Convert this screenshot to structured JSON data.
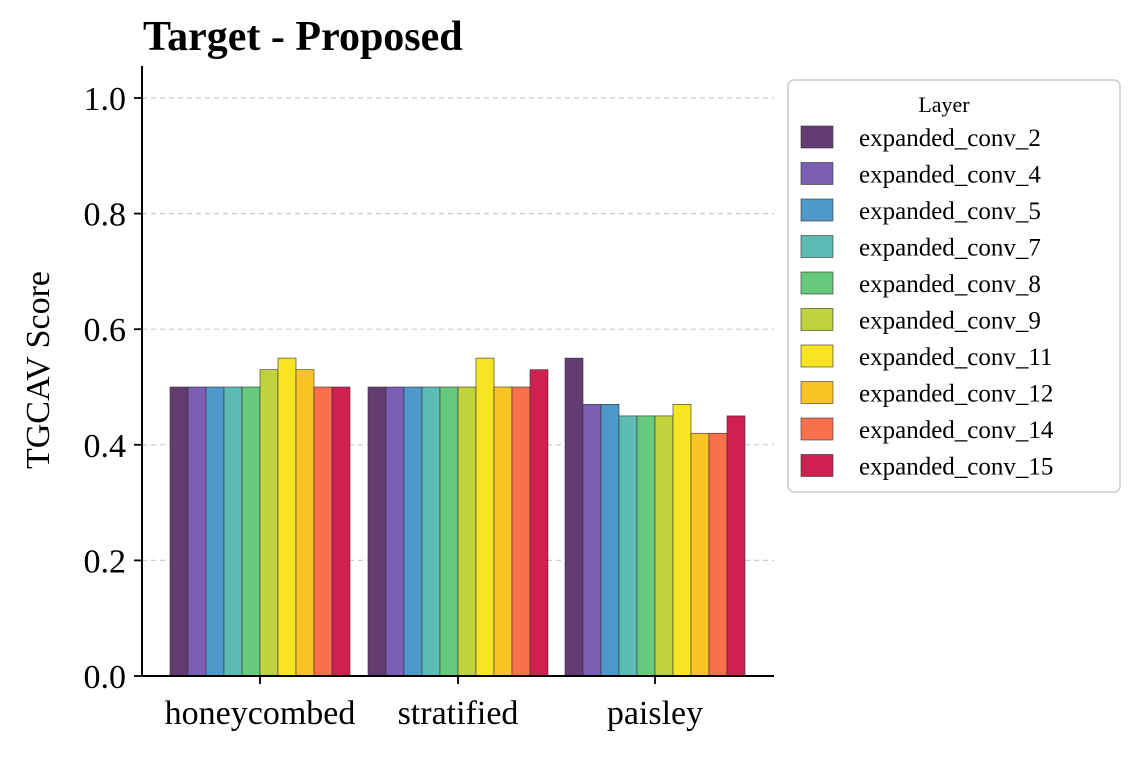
{
  "chart_data": {
    "type": "bar",
    "title": "Target - Proposed",
    "xlabel": "",
    "ylabel": "TGCAV Score",
    "ylim": [
      0,
      1.05
    ],
    "yticks": [
      "0.0",
      "0.2",
      "0.4",
      "0.6",
      "0.8",
      "1.0"
    ],
    "ytick_values": [
      0.0,
      0.2,
      0.4,
      0.6,
      0.8,
      1.0
    ],
    "grid": "horizontal dashed",
    "categories": [
      "honeycombed",
      "stratified",
      "paisley"
    ],
    "legend": {
      "title": "Layer",
      "placement": "outside-right"
    },
    "series": [
      {
        "name": "expanded_conv_2",
        "color": "#643c72",
        "values": [
          0.5,
          0.5,
          0.55
        ]
      },
      {
        "name": "expanded_conv_4",
        "color": "#7a5fb5",
        "values": [
          0.5,
          0.5,
          0.47
        ]
      },
      {
        "name": "expanded_conv_5",
        "color": "#4e98cb",
        "values": [
          0.5,
          0.5,
          0.47
        ]
      },
      {
        "name": "expanded_conv_7",
        "color": "#5cbcb4",
        "values": [
          0.5,
          0.5,
          0.45
        ]
      },
      {
        "name": "expanded_conv_8",
        "color": "#67c97c",
        "values": [
          0.5,
          0.5,
          0.45
        ]
      },
      {
        "name": "expanded_conv_9",
        "color": "#c0d23c",
        "values": [
          0.53,
          0.5,
          0.45
        ]
      },
      {
        "name": "expanded_conv_11",
        "color": "#f8e521",
        "values": [
          0.55,
          0.55,
          0.47
        ]
      },
      {
        "name": "expanded_conv_12",
        "color": "#fbc425",
        "values": [
          0.53,
          0.5,
          0.42
        ]
      },
      {
        "name": "expanded_conv_14",
        "color": "#fb704c",
        "values": [
          0.5,
          0.5,
          0.42
        ]
      },
      {
        "name": "expanded_conv_15",
        "color": "#cf2150",
        "values": [
          0.5,
          0.53,
          0.45
        ]
      }
    ]
  }
}
